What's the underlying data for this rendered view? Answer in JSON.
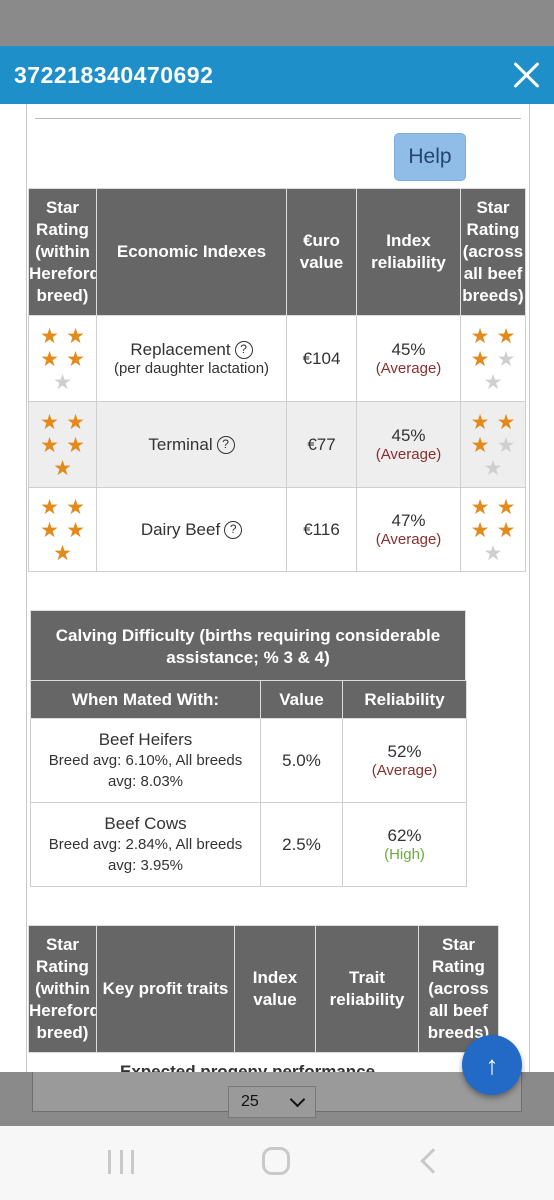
{
  "modal": {
    "title": "372218340470692"
  },
  "help_label": "Help",
  "economic": {
    "headers": [
      "Star Rating (within Hereford breed)",
      "Economic Indexes",
      "€uro value",
      "Index reliability",
      "Star Rating (across all beef breeds)"
    ],
    "rows": [
      {
        "stars_within": 4,
        "name": "Replacement",
        "sub": "(per daughter lactation)",
        "value": "€104",
        "reliability": "45%",
        "reliability_label": "(Average)",
        "stars_across": 3
      },
      {
        "stars_within": 5,
        "name": "Terminal",
        "sub": "",
        "value": "€77",
        "reliability": "45%",
        "reliability_label": "(Average)",
        "stars_across": 3
      },
      {
        "stars_within": 5,
        "name": "Dairy Beef",
        "sub": "",
        "value": "€116",
        "reliability": "47%",
        "reliability_label": "(Average)",
        "stars_across": 4
      }
    ]
  },
  "calving": {
    "title": "Calving Difficulty (births requiring considerable assistance; % 3 & 4)",
    "headers": [
      "When Mated With:",
      "Value",
      "Reliability"
    ],
    "rows": [
      {
        "name": "Beef Heifers",
        "breed_avg": "Breed avg: 6.10%, All breeds avg: 8.03%",
        "value": "5.0%",
        "reliability": "52%",
        "reliability_label": "(Average)"
      },
      {
        "name": "Beef Cows",
        "breed_avg": "Breed avg: 2.84%, All breeds avg: 3.95%",
        "value": "2.5%",
        "reliability": "62%",
        "reliability_label": "(High)"
      }
    ]
  },
  "profit": {
    "headers": [
      "Star Rating (within Hereford breed)",
      "Key profit traits",
      "Index value",
      "Trait reliability",
      "Star Rating (across all beef breeds)"
    ],
    "partial_row": "Expected progeny performance"
  },
  "pager": {
    "value": "25"
  },
  "colors": {
    "header_blue": "#1f8fc9",
    "table_header": "#666666",
    "star_on": "#e38a1c",
    "star_off": "#cfcfcf",
    "average": "#8b2e2e",
    "high": "#6aab3f",
    "fab": "#2369c6"
  },
  "icons": {
    "close": "close-icon",
    "help": "question-circle-icon",
    "scroll_top": "arrow-up-icon",
    "dropdown": "chevron-down-icon"
  }
}
